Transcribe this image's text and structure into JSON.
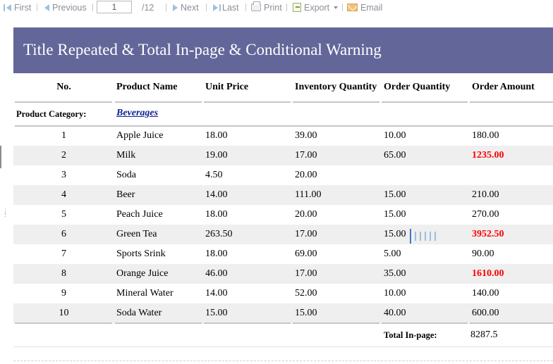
{
  "toolbar": {
    "first": "First",
    "previous": "Previous",
    "page_value": "1",
    "page_total": "/12",
    "next": "Next",
    "last": "Last",
    "print": "Print",
    "export": "Export",
    "email": "Email"
  },
  "report": {
    "title": "Title Repeated & Total In-page & Conditional Warning",
    "columns": [
      "No.",
      "Product Name",
      "Unit Price",
      "Inventory Quantity",
      "Order Quantity",
      "Order Amount"
    ],
    "category_label": "Product Category:",
    "category_value": "Beverages",
    "rows": [
      {
        "no": "1",
        "name": "Apple Juice",
        "price": "18.00",
        "inventory": "39.00",
        "qty": "10.00",
        "amount": "180.00",
        "warn": false
      },
      {
        "no": "2",
        "name": "Milk",
        "price": "19.00",
        "inventory": "17.00",
        "qty": "65.00",
        "amount": "1235.00",
        "warn": true
      },
      {
        "no": "3",
        "name": "Soda",
        "price": "4.50",
        "inventory": "20.00",
        "qty": "",
        "amount": "",
        "warn": false
      },
      {
        "no": "4",
        "name": "Beer",
        "price": "14.00",
        "inventory": "111.00",
        "qty": "15.00",
        "amount": "210.00",
        "warn": false
      },
      {
        "no": "5",
        "name": "Peach Juice",
        "price": "18.00",
        "inventory": "20.00",
        "qty": "15.00",
        "amount": "270.00",
        "warn": false
      },
      {
        "no": "6",
        "name": "Green Tea",
        "price": "263.50",
        "inventory": "17.00",
        "qty": "15.00",
        "amount": "3952.50",
        "warn": true
      },
      {
        "no": "7",
        "name": "Sports Srink",
        "price": "18.00",
        "inventory": "69.00",
        "qty": "5.00",
        "amount": "90.00",
        "warn": false
      },
      {
        "no": "8",
        "name": "Orange Juice",
        "price": "46.00",
        "inventory": "17.00",
        "qty": "35.00",
        "amount": "1610.00",
        "warn": true
      },
      {
        "no": "9",
        "name": "Mineral Water",
        "price": "14.00",
        "inventory": "52.00",
        "qty": "10.00",
        "amount": "140.00",
        "warn": false
      },
      {
        "no": "10",
        "name": "Soda Water",
        "price": "15.00",
        "inventory": "15.00",
        "qty": "40.00",
        "amount": "600.00",
        "warn": false
      }
    ],
    "total_label": "Total In-page:",
    "total_value": "8287.5"
  },
  "colors": {
    "title_bg": "#636699",
    "warning": "#ff0000",
    "alt_row": "#efefef",
    "link": "#0c1f8f"
  }
}
